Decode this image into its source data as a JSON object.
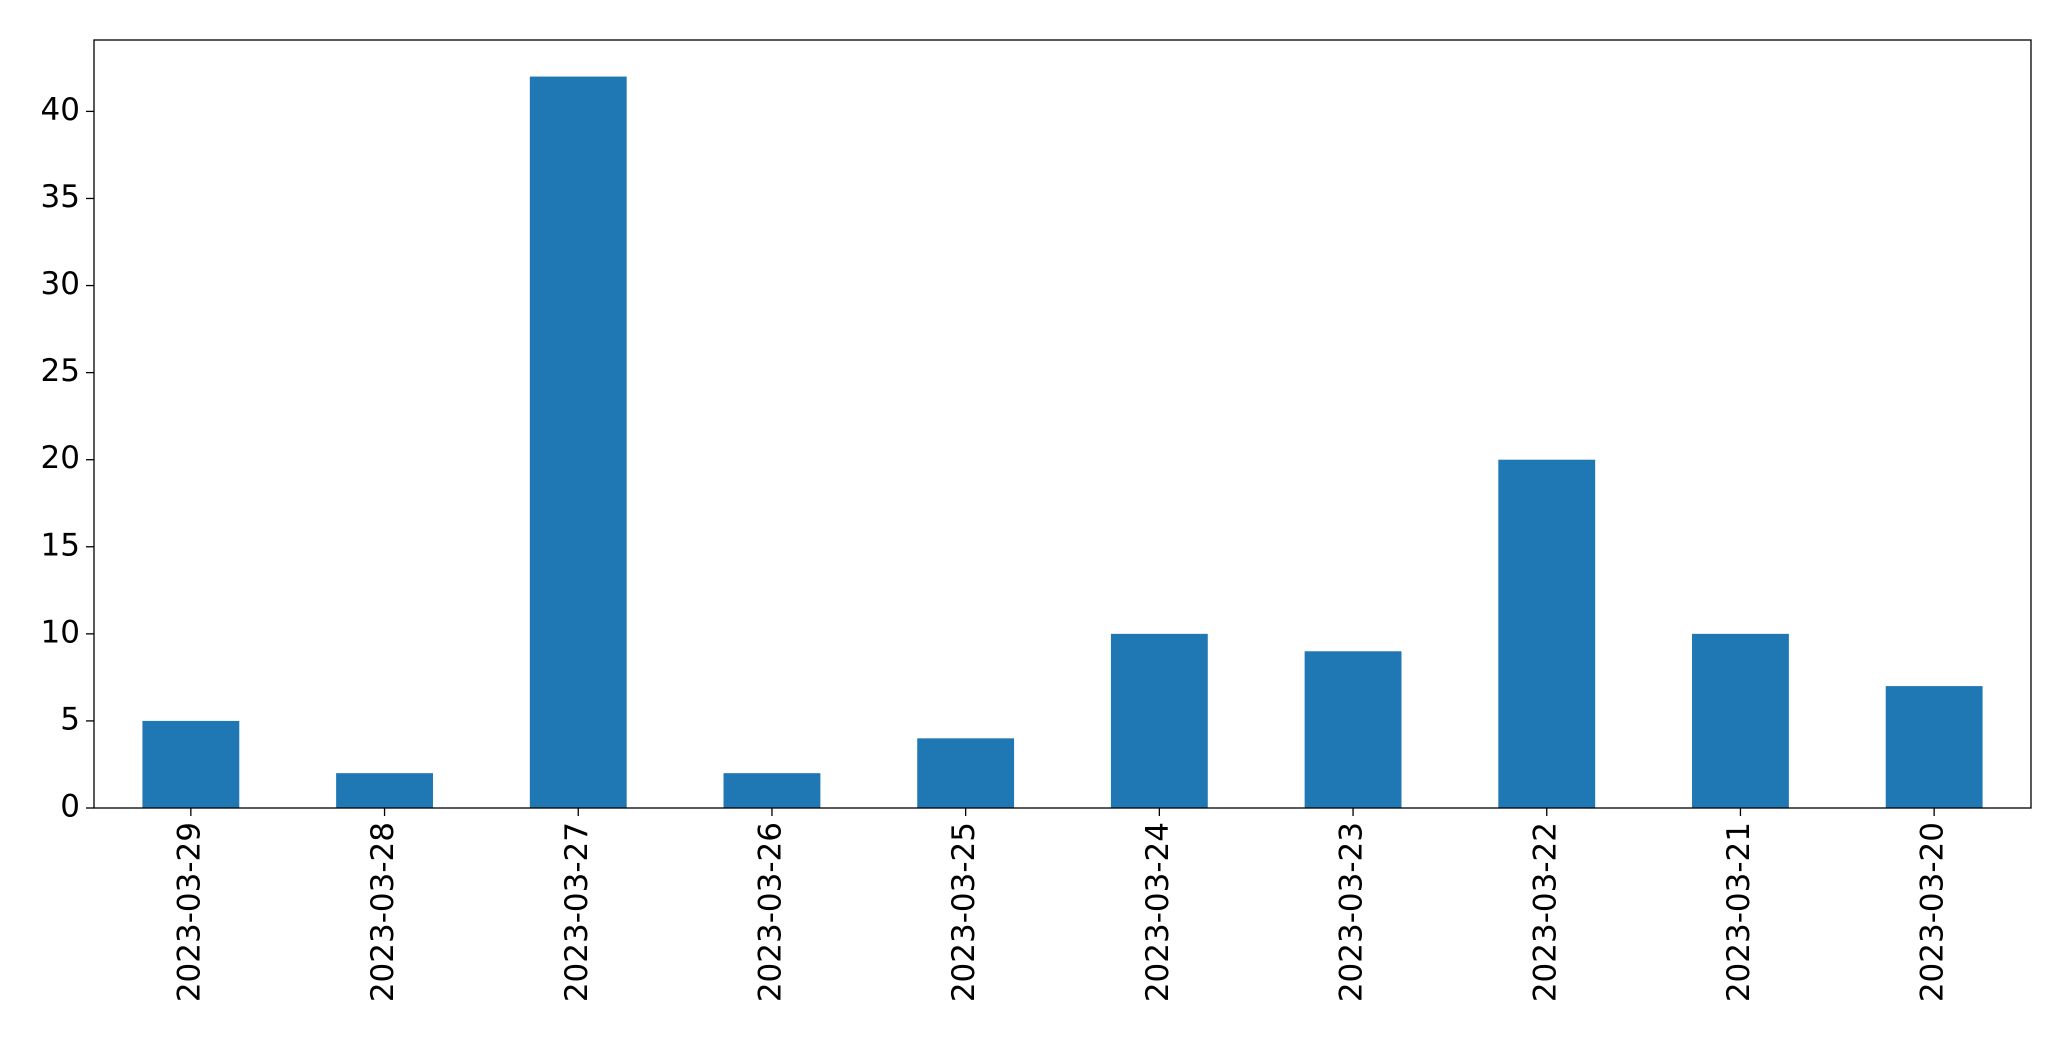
{
  "chart_data": {
    "type": "bar",
    "categories": [
      "2023-03-29",
      "2023-03-28",
      "2023-03-27",
      "2023-03-26",
      "2023-03-25",
      "2023-03-24",
      "2023-03-23",
      "2023-03-22",
      "2023-03-21",
      "2023-03-20"
    ],
    "values": [
      5,
      2,
      42,
      2,
      4,
      10,
      9,
      20,
      10,
      7
    ],
    "color": "#1f77b4",
    "ylim": [
      0,
      44.1
    ],
    "yticks": [
      0,
      5,
      10,
      15,
      20,
      25,
      30,
      35,
      40
    ],
    "grid": false
  }
}
